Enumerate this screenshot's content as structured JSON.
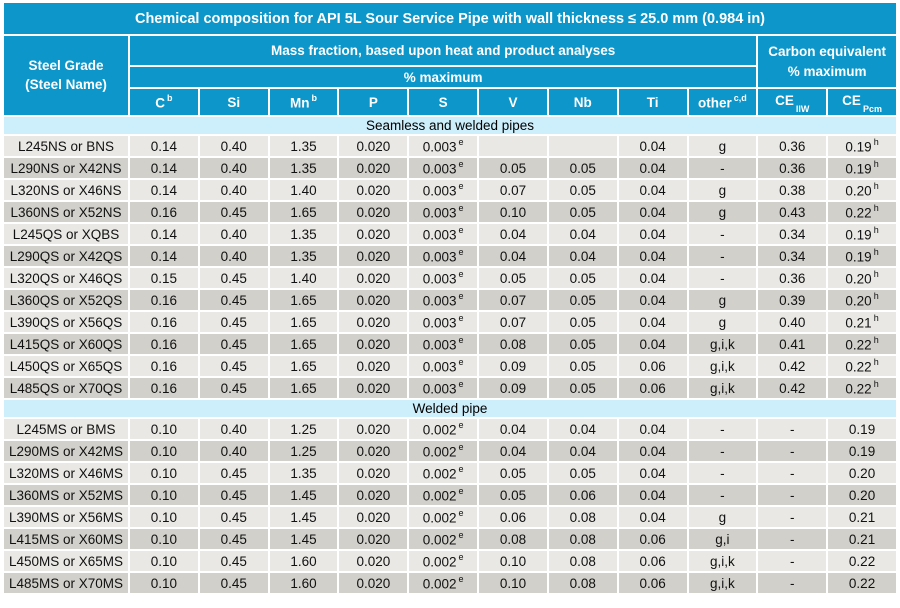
{
  "title": "Chemical composition for API 5L Sour Service Pipe with wall thickness ≤ 25.0 mm (0.984 in)",
  "header": {
    "steel_grade_line1": "Steel Grade",
    "steel_grade_line2": "(Steel Name)",
    "mass_fraction": "Mass fraction, based upon heat and product analyses",
    "percent_maximum": "% maximum",
    "carbon_equivalent_line1": "Carbon equivalent",
    "carbon_equivalent_line2": "% maximum",
    "columns": [
      {
        "t": "C",
        "sup": "b"
      },
      {
        "t": "Si"
      },
      {
        "t": "Mn",
        "sup": "b"
      },
      {
        "t": "P"
      },
      {
        "t": "S"
      },
      {
        "t": "V"
      },
      {
        "t": "Nb"
      },
      {
        "t": "Ti"
      },
      {
        "t": "other",
        "sup": "c,d"
      },
      {
        "t": "CE",
        "sub": "IIW"
      },
      {
        "t": "CE",
        "sub": "Pcm"
      }
    ]
  },
  "colors": {
    "header_blue": "#0d96c9",
    "section_band_blue": "#cdeefb",
    "row_light_gray": "#e9e8e4",
    "row_dark_gray": "#d2d0ca"
  },
  "sections": [
    {
      "name": "Seamless and welded pipes",
      "rows": [
        [
          "L245NS or BNS",
          "0.14",
          "0.40",
          "1.35",
          "0.020",
          {
            "v": "0.003",
            "sup": "e"
          },
          "",
          "",
          "0.04",
          "g",
          "0.36",
          {
            "v": "0.19",
            "sup": "h"
          }
        ],
        [
          "L290NS or X42NS",
          "0.14",
          "0.40",
          "1.35",
          "0.020",
          {
            "v": "0.003",
            "sup": "e"
          },
          "0.05",
          "0.05",
          "0.04",
          "-",
          "0.36",
          {
            "v": "0.19",
            "sup": "h"
          }
        ],
        [
          "L320NS or X46NS",
          "0.14",
          "0.40",
          "1.40",
          "0.020",
          {
            "v": "0.003",
            "sup": "e"
          },
          "0.07",
          "0.05",
          "0.04",
          "g",
          "0.38",
          {
            "v": "0.20",
            "sup": "h"
          }
        ],
        [
          "L360NS or X52NS",
          "0.16",
          "0.45",
          "1.65",
          "0.020",
          {
            "v": "0.003",
            "sup": "e"
          },
          "0.10",
          "0.05",
          "0.04",
          "g",
          "0.43",
          {
            "v": "0.22",
            "sup": "h"
          }
        ],
        [
          "L245QS or XQBS",
          "0.14",
          "0.40",
          "1.35",
          "0.020",
          {
            "v": "0.003",
            "sup": "e"
          },
          "0.04",
          "0.04",
          "0.04",
          "-",
          "0.34",
          {
            "v": "0.19",
            "sup": "h"
          }
        ],
        [
          "L290QS or X42QS",
          "0.14",
          "0.40",
          "1.35",
          "0.020",
          {
            "v": "0.003",
            "sup": "e"
          },
          "0.04",
          "0.04",
          "0.04",
          "-",
          "0.34",
          {
            "v": "0.19",
            "sup": "h"
          }
        ],
        [
          "L320QS or X46QS",
          "0.15",
          "0.45",
          "1.40",
          "0.020",
          {
            "v": "0.003",
            "sup": "e"
          },
          "0.05",
          "0.05",
          "0.04",
          "-",
          "0.36",
          {
            "v": "0.20",
            "sup": "h"
          }
        ],
        [
          "L360QS or X52QS",
          "0.16",
          "0.45",
          "1.65",
          "0.020",
          {
            "v": "0.003",
            "sup": "e"
          },
          "0.07",
          "0.05",
          "0.04",
          "g",
          "0.39",
          {
            "v": "0.20",
            "sup": "h"
          }
        ],
        [
          "L390QS or X56QS",
          "0.16",
          "0.45",
          "1.65",
          "0.020",
          {
            "v": "0.003",
            "sup": "e"
          },
          "0.07",
          "0.05",
          "0.04",
          "g",
          "0.40",
          {
            "v": "0.21",
            "sup": "h"
          }
        ],
        [
          "L415QS or X60QS",
          "0.16",
          "0.45",
          "1.65",
          "0.020",
          {
            "v": "0.003",
            "sup": "e"
          },
          "0.08",
          "0.05",
          "0.04",
          "g,i,k",
          "0.41",
          {
            "v": "0.22",
            "sup": "h"
          }
        ],
        [
          "L450QS or X65QS",
          "0.16",
          "0.45",
          "1.65",
          "0.020",
          {
            "v": "0.003",
            "sup": "e"
          },
          "0.09",
          "0.05",
          "0.06",
          "g,i,k",
          "0.42",
          {
            "v": "0.22",
            "sup": "h"
          }
        ],
        [
          "L485QS or X70QS",
          "0.16",
          "0.45",
          "1.65",
          "0.020",
          {
            "v": "0.003",
            "sup": "e"
          },
          "0.09",
          "0.05",
          "0.06",
          "g,i,k",
          "0.42",
          {
            "v": "0.22",
            "sup": "h"
          }
        ]
      ]
    },
    {
      "name": "Welded pipe",
      "rows": [
        [
          "L245MS or BMS",
          "0.10",
          "0.40",
          "1.25",
          "0.020",
          {
            "v": "0.002",
            "sup": "e"
          },
          "0.04",
          "0.04",
          "0.04",
          "-",
          "-",
          "0.19"
        ],
        [
          "L290MS or X42MS",
          "0.10",
          "0.40",
          "1.25",
          "0.020",
          {
            "v": "0.002",
            "sup": "e"
          },
          "0.04",
          "0.04",
          "0.04",
          "-",
          "-",
          "0.19"
        ],
        [
          "L320MS or X46MS",
          "0.10",
          "0.45",
          "1.35",
          "0.020",
          {
            "v": "0.002",
            "sup": "e"
          },
          "0.05",
          "0.05",
          "0.04",
          "-",
          "-",
          "0.20"
        ],
        [
          "L360MS or X52MS",
          "0.10",
          "0.45",
          "1.45",
          "0.020",
          {
            "v": "0.002",
            "sup": "e"
          },
          "0.05",
          "0.06",
          "0.04",
          "-",
          "-",
          "0.20"
        ],
        [
          "L390MS or X56MS",
          "0.10",
          "0.45",
          "1.45",
          "0.020",
          {
            "v": "0.002",
            "sup": "e"
          },
          "0.06",
          "0.08",
          "0.04",
          "g",
          "-",
          "0.21"
        ],
        [
          "L415MS or X60MS",
          "0.10",
          "0.45",
          "1.45",
          "0.020",
          {
            "v": "0.002",
            "sup": "e"
          },
          "0.08",
          "0.08",
          "0.06",
          "g,i",
          "-",
          "0.21"
        ],
        [
          "L450MS or X65MS",
          "0.10",
          "0.45",
          "1.60",
          "0.020",
          {
            "v": "0.002",
            "sup": "e"
          },
          "0.10",
          "0.08",
          "0.06",
          "g,i,k",
          "-",
          "0.22"
        ],
        [
          "L485MS or X70MS",
          "0.10",
          "0.45",
          "1.60",
          "0.020",
          {
            "v": "0.002",
            "sup": "e"
          },
          "0.10",
          "0.08",
          "0.06",
          "g,i,k",
          "-",
          "0.22"
        ]
      ]
    }
  ]
}
